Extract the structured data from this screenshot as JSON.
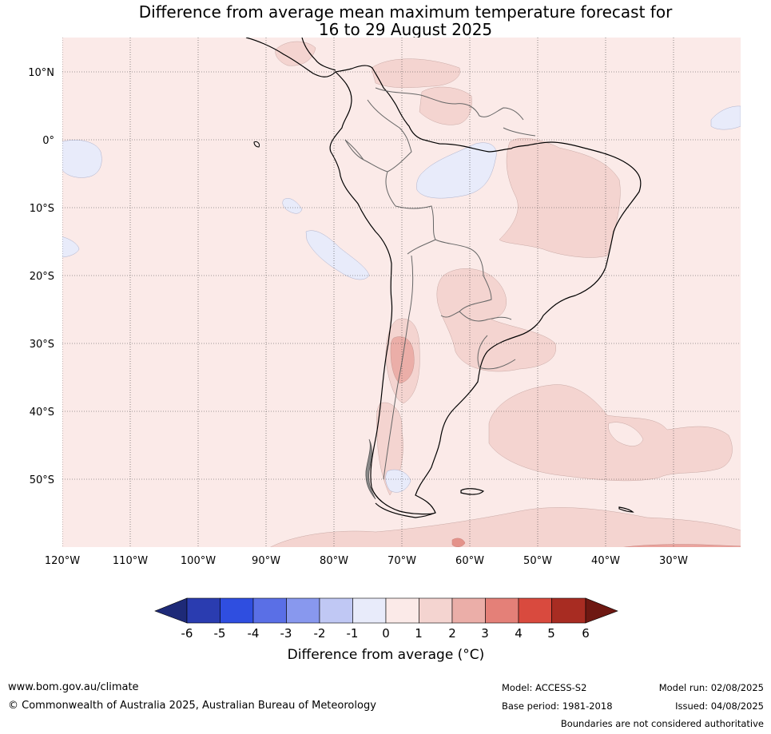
{
  "title": {
    "line1": "Difference from average mean maximum temperature forecast for",
    "line2": "16 to 29 August 2025"
  },
  "map": {
    "lat_labels": [
      "10°N",
      "0°",
      "10°S",
      "20°S",
      "30°S",
      "40°S",
      "50°S"
    ],
    "lon_labels": [
      "120°W",
      "110°W",
      "100°W",
      "90°W",
      "80°W",
      "70°W",
      "60°W",
      "50°W",
      "40°W",
      "30°W"
    ],
    "colors": {
      "background_anomaly": "#fbeae8",
      "warm_1_2": "#f4d4d0",
      "warm_2_3": "#ebaea8",
      "cool_-1_0": "#e8ebfa"
    }
  },
  "colorbar": {
    "tick_labels": [
      "-6",
      "-5",
      "-4",
      "-3",
      "-2",
      "-1",
      "0",
      "1",
      "2",
      "3",
      "4",
      "5",
      "6"
    ],
    "colors": [
      "#1e2a78",
      "#2a3cb0",
      "#2f4ee0",
      "#5a6fe6",
      "#8898ee",
      "#c0c8f4",
      "#e8ebfa",
      "#fbeae8",
      "#f4d4d0",
      "#ebaea8",
      "#e48078",
      "#d94a3e",
      "#a82c22",
      "#6e1812"
    ],
    "title": "Difference from average (°C)"
  },
  "footer": {
    "url": "www.bom.gov.au/climate",
    "copyright": "© Commonwealth of Australia 2025, Australian Bureau of Meteorology",
    "model": "Model: ACCESS-S2",
    "base_period": "Base period: 1981-2018",
    "model_run": "Model run: 02/08/2025",
    "issued": "Issued: 04/08/2025",
    "disclaimer": "Boundaries are not considered authoritative"
  }
}
